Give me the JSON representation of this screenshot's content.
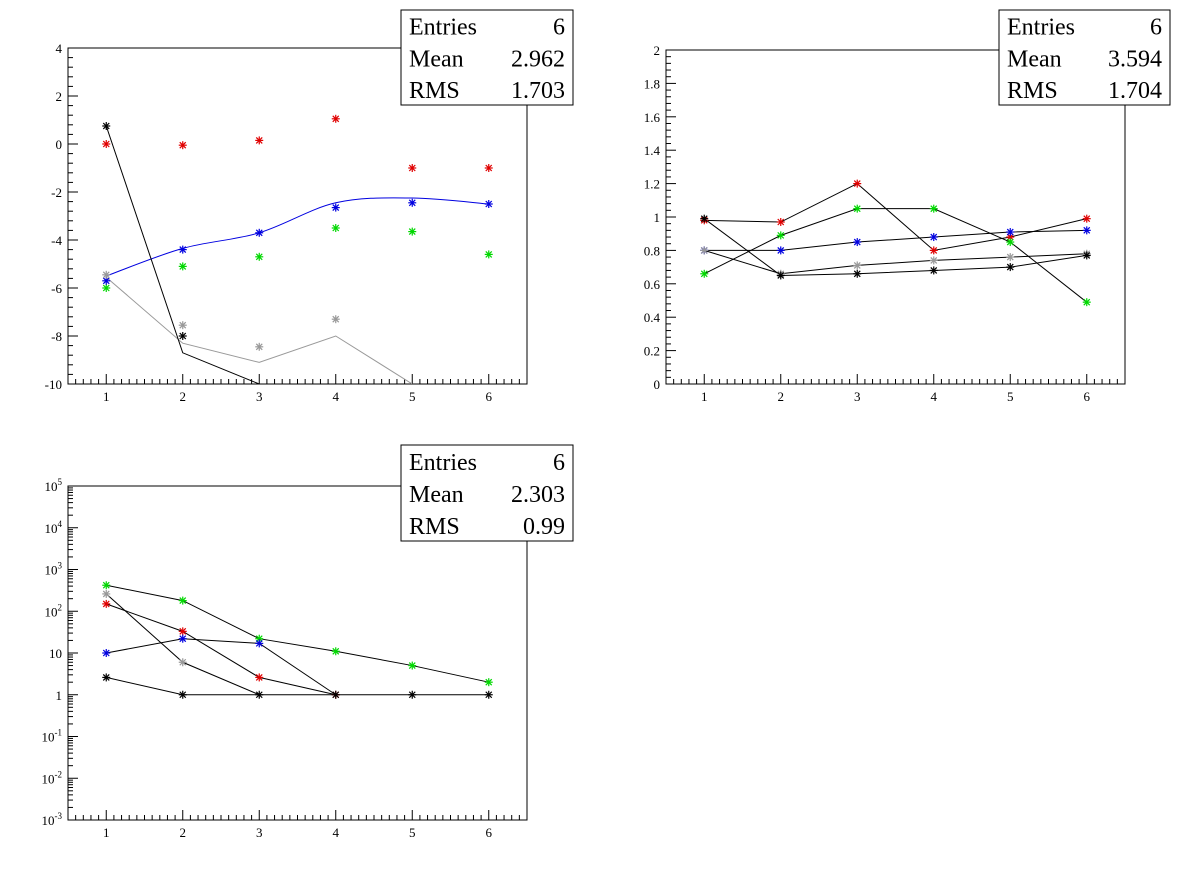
{
  "colors": {
    "black": "#000000",
    "red": "#e00000",
    "blue": "#0000e0",
    "green": "#00d800",
    "gray": "#999999",
    "frame": "#000000"
  },
  "chart_data": [
    {
      "type": "line",
      "ylim": [
        -10,
        4
      ],
      "xlim": [
        0.5,
        6.5
      ],
      "x_ticks": [
        1,
        2,
        3,
        4,
        5,
        6
      ],
      "y_ticks": [
        -10,
        -8,
        -6,
        -4,
        -2,
        0,
        2,
        4
      ],
      "y_tick_labels": [
        "-10",
        "-8",
        "-6",
        "-4",
        "-2",
        "0",
        "2",
        "4"
      ],
      "grid": false,
      "stats": {
        "Entries": "6",
        "Mean": "2.962",
        "RMS": "1.703"
      },
      "stat_labels": [
        "Entries",
        "Mean",
        "RMS"
      ],
      "points": [
        {
          "color": "red",
          "x": [
            1,
            2,
            3,
            4,
            5,
            6
          ],
          "y": [
            0.0,
            -0.05,
            0.15,
            1.05,
            -1.0,
            -1.0
          ]
        },
        {
          "color": "green",
          "x": [
            1,
            2,
            3,
            4,
            5,
            6
          ],
          "y": [
            -6.0,
            -5.1,
            -4.7,
            -3.5,
            -3.65,
            -4.6
          ]
        },
        {
          "color": "blue",
          "x": [
            1,
            2,
            3,
            4,
            5,
            6
          ],
          "y": [
            -5.7,
            -4.4,
            -3.7,
            -2.65,
            -2.45,
            -2.5
          ]
        },
        {
          "color": "gray",
          "x": [
            1,
            2,
            3,
            4
          ],
          "y": [
            -5.45,
            -7.55,
            -8.45,
            -7.3
          ]
        },
        {
          "color": "black",
          "x": [
            1,
            2
          ],
          "y": [
            0.75,
            -8.0
          ]
        }
      ],
      "lines": [
        {
          "color": "blue",
          "x": [
            1,
            2,
            3,
            4,
            5,
            6
          ],
          "y": [
            -5.5,
            -4.35,
            -3.7,
            -2.45,
            -2.25,
            -2.5
          ],
          "smooth": true
        },
        {
          "color": "gray",
          "x": [
            1,
            2,
            3,
            4,
            5
          ],
          "y": [
            -5.55,
            -8.3,
            -9.1,
            -8.0,
            -10.0
          ]
        },
        {
          "color": "black",
          "x": [
            1,
            2,
            3
          ],
          "y": [
            0.75,
            -8.7,
            -10.0
          ]
        }
      ]
    },
    {
      "type": "line",
      "ylim": [
        0,
        2
      ],
      "xlim": [
        0.5,
        6.5
      ],
      "x_ticks": [
        1,
        2,
        3,
        4,
        5,
        6
      ],
      "y_ticks": [
        0,
        0.2,
        0.4,
        0.6,
        0.8,
        1,
        1.2,
        1.4,
        1.6,
        1.8,
        2
      ],
      "y_tick_labels": [
        "0",
        "0.2",
        "0.4",
        "0.6",
        "0.8",
        "1",
        "1.2",
        "1.4",
        "1.6",
        "1.8",
        "2"
      ],
      "grid": false,
      "stats": {
        "Entries": "6",
        "Mean": "3.594",
        "RMS": "1.704"
      },
      "stat_labels": [
        "Entries",
        "Mean",
        "RMS"
      ],
      "points": [
        {
          "color": "red",
          "x": [
            1,
            2,
            3,
            4,
            5,
            6
          ],
          "y": [
            0.98,
            0.97,
            1.2,
            0.8,
            0.88,
            0.99
          ]
        },
        {
          "color": "green",
          "x": [
            1,
            2,
            3,
            4,
            5,
            6
          ],
          "y": [
            0.66,
            0.89,
            1.05,
            1.05,
            0.85,
            0.49
          ]
        },
        {
          "color": "blue",
          "x": [
            1,
            2,
            3,
            4,
            5,
            6
          ],
          "y": [
            0.8,
            0.8,
            0.85,
            0.88,
            0.91,
            0.92
          ]
        },
        {
          "color": "gray",
          "x": [
            1,
            2,
            3,
            4,
            5,
            6
          ],
          "y": [
            0.8,
            0.66,
            0.71,
            0.74,
            0.76,
            0.78
          ]
        },
        {
          "color": "black",
          "x": [
            1,
            2,
            3,
            4,
            5,
            6
          ],
          "y": [
            0.99,
            0.65,
            0.66,
            0.68,
            0.7,
            0.77
          ]
        }
      ],
      "lines": [
        {
          "color": "black",
          "x": [
            1,
            2,
            3,
            4,
            5,
            6
          ],
          "y": [
            0.98,
            0.97,
            1.2,
            0.8,
            0.88,
            0.99
          ]
        },
        {
          "color": "black",
          "x": [
            1,
            2,
            3,
            4,
            5,
            6
          ],
          "y": [
            0.66,
            0.89,
            1.05,
            1.05,
            0.85,
            0.49
          ]
        },
        {
          "color": "black",
          "x": [
            1,
            2,
            3,
            4,
            5,
            6
          ],
          "y": [
            0.8,
            0.8,
            0.85,
            0.88,
            0.91,
            0.92
          ]
        },
        {
          "color": "black",
          "x": [
            1,
            2,
            3,
            4,
            5,
            6
          ],
          "y": [
            0.8,
            0.66,
            0.71,
            0.74,
            0.76,
            0.78
          ]
        },
        {
          "color": "black",
          "x": [
            1,
            2,
            3,
            4,
            5,
            6
          ],
          "y": [
            0.99,
            0.65,
            0.66,
            0.68,
            0.7,
            0.77
          ]
        }
      ]
    },
    {
      "type": "line",
      "ylim": [
        0.001,
        100000
      ],
      "yscale": "log",
      "xlim": [
        0.5,
        6.5
      ],
      "x_ticks": [
        1,
        2,
        3,
        4,
        5,
        6
      ],
      "y_ticks": [
        0.001,
        0.01,
        0.1,
        1,
        10,
        100,
        1000,
        10000,
        100000
      ],
      "y_tick_labels": [
        {
          "base": "10",
          "exp": "-3"
        },
        {
          "base": "10",
          "exp": "-2"
        },
        {
          "base": "10",
          "exp": "-1"
        },
        {
          "base": "1",
          "exp": ""
        },
        {
          "base": "10",
          "exp": ""
        },
        {
          "base": "10",
          "exp": "2"
        },
        {
          "base": "10",
          "exp": "3"
        },
        {
          "base": "10",
          "exp": "4"
        },
        {
          "base": "10",
          "exp": "5"
        }
      ],
      "grid": false,
      "stats": {
        "Entries": "6",
        "Mean": "2.303",
        "RMS": "0.99"
      },
      "stat_labels": [
        "Entries",
        "Mean",
        "RMS"
      ],
      "points": [
        {
          "color": "red",
          "x": [
            1,
            2,
            3,
            4
          ],
          "y": [
            150,
            33,
            2.6,
            1
          ]
        },
        {
          "color": "green",
          "x": [
            1,
            2,
            3,
            4,
            5,
            6
          ],
          "y": [
            420,
            180,
            22,
            11,
            5,
            2
          ]
        },
        {
          "color": "blue",
          "x": [
            1,
            2,
            3
          ],
          "y": [
            10,
            22,
            17
          ]
        },
        {
          "color": "gray",
          "x": [
            1,
            2
          ],
          "y": [
            260,
            6
          ]
        },
        {
          "color": "black",
          "x": [
            1,
            2,
            3,
            4,
            5,
            6
          ],
          "y": [
            2.6,
            1,
            1,
            1,
            1,
            1
          ]
        }
      ],
      "lines": [
        {
          "color": "black",
          "x": [
            1,
            2,
            3,
            4
          ],
          "y": [
            150,
            33,
            2.6,
            1
          ]
        },
        {
          "color": "black",
          "x": [
            1,
            2,
            3,
            4,
            5,
            6
          ],
          "y": [
            420,
            180,
            22,
            11,
            5,
            2
          ]
        },
        {
          "color": "black",
          "x": [
            1,
            2,
            3,
            4
          ],
          "y": [
            10,
            22,
            17,
            1
          ]
        },
        {
          "color": "black",
          "x": [
            1,
            2,
            3
          ],
          "y": [
            260,
            6,
            1
          ]
        },
        {
          "color": "black",
          "x": [
            1,
            2,
            3,
            4,
            5,
            6
          ],
          "y": [
            2.6,
            1,
            1,
            1,
            1,
            1
          ]
        }
      ]
    }
  ]
}
